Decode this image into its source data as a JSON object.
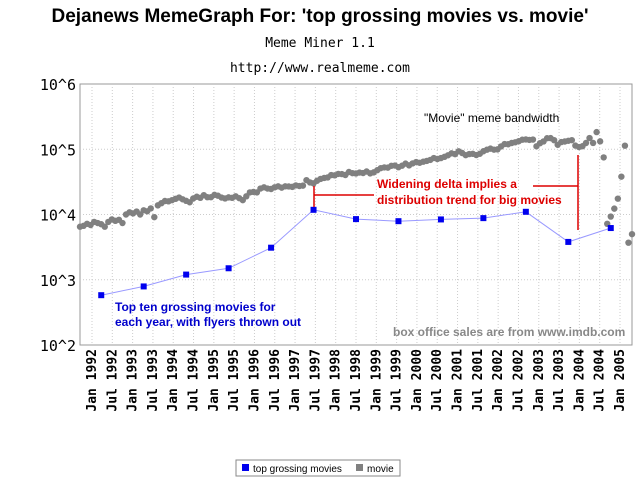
{
  "header": {
    "title": "Dejanews MemeGraph For: 'top grossing movies vs. movie'",
    "subtitle": "Meme Miner 1.1",
    "url": "http://www.realmeme.com"
  },
  "colors": {
    "top_grossing": "#0000ee",
    "movie": "#808080",
    "annotation_red": "#dd0000",
    "annotation_blue": "#0000cc"
  },
  "chart_data": {
    "type": "scatter",
    "yscale": "log",
    "ylim": [
      100,
      1000000
    ],
    "y_tick_labels": [
      "10^2",
      "10^3",
      "10^4",
      "10^5",
      "10^6"
    ],
    "xlim": [
      "1992-01",
      "2005-01"
    ],
    "x_tick_labels": [
      "Jan 1992",
      "Jul 1992",
      "Jan 1993",
      "Jul 1993",
      "Jan 1994",
      "Jul 1994",
      "Jan 1995",
      "Jul 1995",
      "Jan 1996",
      "Jul 1996",
      "Jan 1997",
      "Jul 1997",
      "Jan 1998",
      "Jul 1998",
      "Jan 1999",
      "Jul 1999",
      "Jan 2000",
      "Jul 2000",
      "Jan 2001",
      "Jul 2001",
      "Jan 2002",
      "Jul 2002",
      "Jan 2003",
      "Jul 2003",
      "Jan 2004",
      "Jul 2004",
      "Jan 2005"
    ],
    "grid": true,
    "legend_position": "bottom-center",
    "series": [
      {
        "name": "top grossing movies",
        "points": [
          {
            "x": "1992-07",
            "y": 580
          },
          {
            "x": "1993-07",
            "y": 790
          },
          {
            "x": "1994-07",
            "y": 1200
          },
          {
            "x": "1995-07",
            "y": 1500
          },
          {
            "x": "1996-07",
            "y": 3100
          },
          {
            "x": "1997-07",
            "y": 11800
          },
          {
            "x": "1998-07",
            "y": 8500
          },
          {
            "x": "1999-07",
            "y": 7900
          },
          {
            "x": "2000-07",
            "y": 8400
          },
          {
            "x": "2001-07",
            "y": 8800
          },
          {
            "x": "2002-07",
            "y": 11000
          },
          {
            "x": "2003-07",
            "y": 3800
          },
          {
            "x": "2004-07",
            "y": 6200
          }
        ]
      },
      {
        "name": "movie",
        "points": [
          {
            "x": "1992-01",
            "y": 6500
          },
          {
            "x": "1992-02",
            "y": 6700
          },
          {
            "x": "1992-03",
            "y": 7200
          },
          {
            "x": "1992-04",
            "y": 6900
          },
          {
            "x": "1992-05",
            "y": 7700
          },
          {
            "x": "1992-06",
            "y": 7400
          },
          {
            "x": "1992-07",
            "y": 7100
          },
          {
            "x": "1992-08",
            "y": 6500
          },
          {
            "x": "1992-09",
            "y": 7700
          },
          {
            "x": "1992-10",
            "y": 8400
          },
          {
            "x": "1992-11",
            "y": 8000
          },
          {
            "x": "1992-12",
            "y": 8300
          },
          {
            "x": "1993-01",
            "y": 7400
          },
          {
            "x": "1993-02",
            "y": 10000
          },
          {
            "x": "1993-03",
            "y": 10800
          },
          {
            "x": "1993-04",
            "y": 10400
          },
          {
            "x": "1993-05",
            "y": 11100
          },
          {
            "x": "1993-06",
            "y": 10000
          },
          {
            "x": "1993-07",
            "y": 11600
          },
          {
            "x": "1993-08",
            "y": 11200
          },
          {
            "x": "1993-09",
            "y": 12400
          },
          {
            "x": "1993-10",
            "y": 9100
          },
          {
            "x": "1993-11",
            "y": 13800
          },
          {
            "x": "1993-12",
            "y": 14900
          },
          {
            "x": "1994-01",
            "y": 16100
          },
          {
            "x": "1994-02",
            "y": 15900
          },
          {
            "x": "1994-03",
            "y": 16600
          },
          {
            "x": "1994-04",
            "y": 17400
          },
          {
            "x": "1994-05",
            "y": 18200
          },
          {
            "x": "1994-06",
            "y": 17100
          },
          {
            "x": "1994-07",
            "y": 16200
          },
          {
            "x": "1994-08",
            "y": 15400
          },
          {
            "x": "1994-09",
            "y": 17600
          },
          {
            "x": "1994-10",
            "y": 18700
          },
          {
            "x": "1994-11",
            "y": 18000
          },
          {
            "x": "1994-12",
            "y": 19800
          },
          {
            "x": "1995-01",
            "y": 18400
          },
          {
            "x": "1995-02",
            "y": 18400
          },
          {
            "x": "1995-03",
            "y": 20000
          },
          {
            "x": "1995-04",
            "y": 19400
          },
          {
            "x": "1995-05",
            "y": 18200
          },
          {
            "x": "1995-06",
            "y": 17600
          },
          {
            "x": "1995-07",
            "y": 18300
          },
          {
            "x": "1995-08",
            "y": 18000
          },
          {
            "x": "1995-09",
            "y": 19000
          },
          {
            "x": "1995-10",
            "y": 17800
          },
          {
            "x": "1995-11",
            "y": 16600
          },
          {
            "x": "1995-12",
            "y": 19000
          },
          {
            "x": "1996-01",
            "y": 21800
          },
          {
            "x": "1996-02",
            "y": 22200
          },
          {
            "x": "1996-03",
            "y": 21800
          },
          {
            "x": "1996-04",
            "y": 25000
          },
          {
            "x": "1996-05",
            "y": 26100
          },
          {
            "x": "1996-06",
            "y": 25000
          },
          {
            "x": "1996-07",
            "y": 24600
          },
          {
            "x": "1996-08",
            "y": 26100
          },
          {
            "x": "1996-09",
            "y": 27000
          },
          {
            "x": "1996-10",
            "y": 25800
          },
          {
            "x": "1996-11",
            "y": 27000
          },
          {
            "x": "1996-12",
            "y": 26900
          },
          {
            "x": "1997-01",
            "y": 26500
          },
          {
            "x": "1997-02",
            "y": 27900
          },
          {
            "x": "1997-03",
            "y": 27300
          },
          {
            "x": "1997-04",
            "y": 27700
          },
          {
            "x": "1997-05",
            "y": 33600
          },
          {
            "x": "1997-06",
            "y": 31000
          },
          {
            "x": "1997-07",
            "y": 30000
          },
          {
            "x": "1997-08",
            "y": 32900
          },
          {
            "x": "1997-09",
            "y": 35100
          },
          {
            "x": "1997-10",
            "y": 36300
          },
          {
            "x": "1997-11",
            "y": 37000
          },
          {
            "x": "1997-12",
            "y": 40200
          },
          {
            "x": "1998-01",
            "y": 39800
          },
          {
            "x": "1998-02",
            "y": 41900
          },
          {
            "x": "1998-03",
            "y": 41600
          },
          {
            "x": "1998-04",
            "y": 40300
          },
          {
            "x": "1998-05",
            "y": 44800
          },
          {
            "x": "1998-06",
            "y": 43000
          },
          {
            "x": "1998-07",
            "y": 42600
          },
          {
            "x": "1998-08",
            "y": 44000
          },
          {
            "x": "1998-09",
            "y": 43200
          },
          {
            "x": "1998-10",
            "y": 45600
          },
          {
            "x": "1998-11",
            "y": 42700
          },
          {
            "x": "1998-12",
            "y": 44200
          },
          {
            "x": "1999-01",
            "y": 47700
          },
          {
            "x": "1999-02",
            "y": 51300
          },
          {
            "x": "1999-03",
            "y": 52700
          },
          {
            "x": "1999-04",
            "y": 52300
          },
          {
            "x": "1999-05",
            "y": 55800
          },
          {
            "x": "1999-06",
            "y": 56300
          },
          {
            "x": "1999-07",
            "y": 53100
          },
          {
            "x": "1999-08",
            "y": 55900
          },
          {
            "x": "1999-09",
            "y": 60300
          },
          {
            "x": "1999-10",
            "y": 56600
          },
          {
            "x": "1999-11",
            "y": 60700
          },
          {
            "x": "1999-12",
            "y": 63600
          },
          {
            "x": "2000-01",
            "y": 62000
          },
          {
            "x": "2000-02",
            "y": 64400
          },
          {
            "x": "2000-03",
            "y": 66300
          },
          {
            "x": "2000-04",
            "y": 68700
          },
          {
            "x": "2000-05",
            "y": 73400
          },
          {
            "x": "2000-06",
            "y": 71000
          },
          {
            "x": "2000-07",
            "y": 73300
          },
          {
            "x": "2000-08",
            "y": 76500
          },
          {
            "x": "2000-09",
            "y": 80800
          },
          {
            "x": "2000-10",
            "y": 86500
          },
          {
            "x": "2000-11",
            "y": 84200
          },
          {
            "x": "2000-12",
            "y": 93100
          },
          {
            "x": "2001-01",
            "y": 87600
          },
          {
            "x": "2001-02",
            "y": 81200
          },
          {
            "x": "2001-03",
            "y": 84400
          },
          {
            "x": "2001-04",
            "y": 85100
          },
          {
            "x": "2001-05",
            "y": 81500
          },
          {
            "x": "2001-06",
            "y": 85200
          },
          {
            "x": "2001-07",
            "y": 93200
          },
          {
            "x": "2001-08",
            "y": 98300
          },
          {
            "x": "2001-09",
            "y": 102200
          },
          {
            "x": "2001-10",
            "y": 98600
          },
          {
            "x": "2001-11",
            "y": 99600
          },
          {
            "x": "2001-12",
            "y": 110400
          },
          {
            "x": "2002-01",
            "y": 120300
          },
          {
            "x": "2002-02",
            "y": 119300
          },
          {
            "x": "2002-03",
            "y": 124700
          },
          {
            "x": "2002-04",
            "y": 127800
          },
          {
            "x": "2002-05",
            "y": 132900
          },
          {
            "x": "2002-06",
            "y": 139900
          },
          {
            "x": "2002-07",
            "y": 141400
          },
          {
            "x": "2002-08",
            "y": 139100
          },
          {
            "x": "2002-09",
            "y": 140700
          },
          {
            "x": "2002-10",
            "y": 111100
          },
          {
            "x": "2002-11",
            "y": 123900
          },
          {
            "x": "2002-12",
            "y": 131700
          },
          {
            "x": "2003-01",
            "y": 147600
          },
          {
            "x": "2003-02",
            "y": 148100
          },
          {
            "x": "2003-03",
            "y": 137700
          },
          {
            "x": "2003-04",
            "y": 117100
          },
          {
            "x": "2003-05",
            "y": 128800
          },
          {
            "x": "2003-06",
            "y": 131500
          },
          {
            "x": "2003-07",
            "y": 134900
          },
          {
            "x": "2003-08",
            "y": 137800
          },
          {
            "x": "2003-09",
            "y": 113700
          },
          {
            "x": "2003-10",
            "y": 108200
          },
          {
            "x": "2003-11",
            "y": 111300
          },
          {
            "x": "2003-12",
            "y": 124700
          },
          {
            "x": "2004-01",
            "y": 148400
          },
          {
            "x": "2004-02",
            "y": 124800
          },
          {
            "x": "2004-03",
            "y": 183200
          },
          {
            "x": "2004-04",
            "y": 132200
          },
          {
            "x": "2004-05",
            "y": 75000
          },
          {
            "x": "2004-06",
            "y": 7200
          },
          {
            "x": "2004-07",
            "y": 9300
          },
          {
            "x": "2004-08",
            "y": 12300
          },
          {
            "x": "2004-09",
            "y": 17500
          },
          {
            "x": "2004-10",
            "y": 38000
          },
          {
            "x": "2004-11",
            "y": 113400
          },
          {
            "x": "2004-12",
            "y": 3700
          },
          {
            "x": "2005-01",
            "y": 5000
          }
        ]
      }
    ],
    "annotations": [
      {
        "id": "movie_bandwidth",
        "text": "\"Movie\" meme bandwidth"
      },
      {
        "id": "delta1",
        "text": "Widening delta implies a"
      },
      {
        "id": "delta2",
        "text": "distribution trend for big movies"
      },
      {
        "id": "top1",
        "text": "Top ten grossing movies for"
      },
      {
        "id": "top2",
        "text": "each year, with flyers thrown out"
      },
      {
        "id": "source",
        "text": "box office sales are from www.imdb.com"
      }
    ]
  }
}
